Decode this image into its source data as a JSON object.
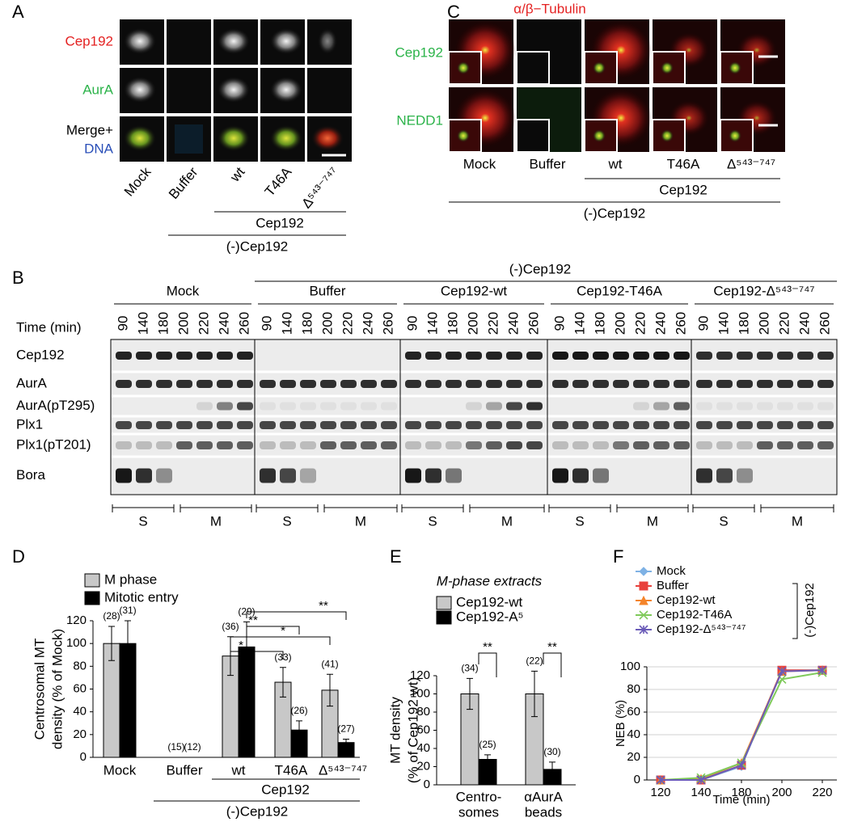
{
  "panel_a": {
    "label": "A",
    "row_labels": [
      "Cep192",
      "AurA",
      "Merge+",
      "DNA"
    ],
    "columns": [
      "Mock",
      "Buffer",
      "wt",
      "T46A",
      "Δ⁵⁴³⁻⁷⁴⁷"
    ],
    "group_inner": "Cep192",
    "group_outer": "(-)Cep192"
  },
  "panel_c": {
    "label": "C",
    "stain": "α/β−Tubulin",
    "row_labels": [
      "Cep192",
      "NEDD1"
    ],
    "columns": [
      "Mock",
      "Buffer",
      "wt",
      "T46A",
      "Δ⁵⁴³⁻⁷⁴⁷"
    ],
    "group_inner": "Cep192",
    "group_outer": "(-)Cep192"
  },
  "panel_b": {
    "label": "B",
    "header": "(-)Cep192",
    "groups": [
      "Mock",
      "Buffer",
      "Cep192-wt",
      "Cep192-T46A",
      "Cep192-Δ⁵⁴³⁻⁷⁴⁷"
    ],
    "time_label": "Time (min)",
    "times": [
      90,
      140,
      180,
      200,
      220,
      240,
      260
    ],
    "rows": [
      "Cep192",
      "AurA",
      "AurA(pT295)",
      "Plx1",
      "Plx1(pT201)",
      "Bora"
    ],
    "phases": [
      "S",
      "M"
    ]
  },
  "chart_data": [
    {
      "panel": "D",
      "type": "bar",
      "ylabel": [
        "Centrosomal MT",
        "density (% of Mock)"
      ],
      "categories": [
        "Mock",
        "Buffer",
        "wt",
        "T46A",
        "Δ⁵⁴³⁻⁷⁴⁷"
      ],
      "series": [
        {
          "name": "M phase",
          "color": "#c8c8c8",
          "values": [
            100,
            0,
            89,
            66,
            59
          ],
          "errors": [
            15,
            0,
            17,
            13,
            14
          ],
          "counts": [
            "(28)",
            "(15)",
            "(36)",
            "(33)",
            "(41)"
          ]
        },
        {
          "name": "Mitotic entry",
          "color": "#000000",
          "values": [
            100,
            0,
            97,
            24,
            13
          ],
          "errors": [
            20,
            0,
            22,
            8,
            3
          ],
          "counts": [
            "(31)",
            "(12)",
            "(29)",
            "(26)",
            "(27)"
          ]
        }
      ],
      "ylim": [
        0,
        120
      ],
      "yticks": [
        0,
        20,
        40,
        60,
        80,
        100,
        120
      ],
      "significance": [
        "*",
        "*",
        "**",
        "**"
      ],
      "group_inner": "Cep192",
      "group_outer": "(-)Cep192"
    },
    {
      "panel": "E",
      "type": "bar",
      "title": "M-phase extracts",
      "ylabel": [
        "MT density",
        "(% of Cep192 wt)"
      ],
      "categories": [
        [
          "Centro-",
          "somes"
        ],
        [
          "αAurA",
          "beads"
        ]
      ],
      "series": [
        {
          "name": "Cep192-wt",
          "color": "#c8c8c8",
          "values": [
            100,
            100
          ],
          "errors": [
            17,
            25
          ],
          "counts": [
            "(34)",
            "(22)"
          ]
        },
        {
          "name": "Cep192-A⁵",
          "color": "#000000",
          "values": [
            28,
            17
          ],
          "errors": [
            5,
            8
          ],
          "counts": [
            "(25)",
            "(30)"
          ]
        }
      ],
      "ylim": [
        0,
        120
      ],
      "yticks": [
        0,
        20,
        40,
        60,
        80,
        100,
        120
      ],
      "significance": [
        "**",
        "**"
      ]
    },
    {
      "panel": "F",
      "type": "line",
      "xlabel": "Time (min)",
      "ylabel": "NEB (%)",
      "categories": [
        120,
        140,
        180,
        200,
        220
      ],
      "series": [
        {
          "name": "Mock",
          "color": "#7fb2e5",
          "marker": "diamond",
          "values": [
            0,
            0,
            12,
            97,
            97
          ]
        },
        {
          "name": "Buffer",
          "color": "#e8413c",
          "marker": "square",
          "values": [
            0,
            0,
            13,
            97,
            97
          ]
        },
        {
          "name": "Cep192-wt",
          "color": "#f4842a",
          "marker": "triangle",
          "values": [
            0,
            1,
            15,
            96,
            97
          ]
        },
        {
          "name": "Cep192-T46A",
          "color": "#7fca5a",
          "marker": "x",
          "values": [
            0,
            2,
            15,
            89,
            95
          ]
        },
        {
          "name": "Cep192-Δ⁵⁴³⁻⁷⁴⁷",
          "color": "#6a5bb8",
          "marker": "star",
          "values": [
            0,
            0,
            13,
            96,
            97
          ]
        }
      ],
      "ylim": [
        0,
        100
      ],
      "yticks": [
        0,
        20,
        40,
        60,
        80,
        100
      ],
      "grid": true,
      "legend_group": "(-)Cep192"
    }
  ]
}
